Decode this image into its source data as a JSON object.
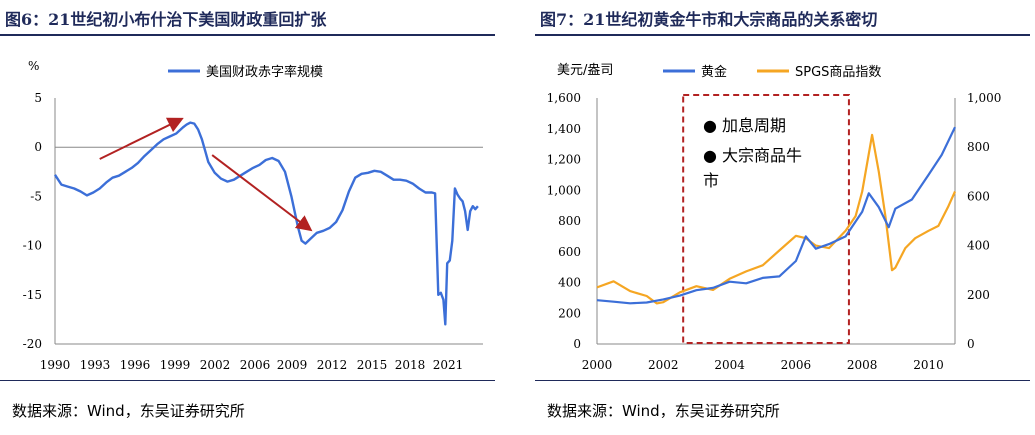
{
  "left": {
    "title": "图6：21世纪初小布什治下美国财政重回扩张",
    "source": "数据来源：Wind，东吴证券研究所"
  },
  "right": {
    "title": "图7：21世纪初黄金牛市和大宗商品的关系密切",
    "source": "数据来源：Wind，东吴证券研究所"
  },
  "colors": {
    "blue": "#3c6fd8",
    "orange": "#f5a623",
    "red": "#b22222",
    "navy": "#1f2a5a"
  },
  "chart_data": [
    {
      "type": "line",
      "title": "图6：21世纪初小布什治下美国财政重回扩张",
      "ylabel": "%",
      "xlabel": "",
      "ylim": [
        -20,
        5
      ],
      "xlim": [
        1990,
        2023.5
      ],
      "yticks": [
        5,
        0,
        -5,
        -10,
        -15,
        -20
      ],
      "yticklabels": [
        "5",
        "0",
        "-5",
        "-10",
        "-15",
        "-20"
      ],
      "xticklabels": [
        "1990",
        "1993",
        "1996",
        "1999",
        "2002",
        "2006",
        "2009",
        "2012",
        "2015",
        "2018",
        "2021"
      ],
      "series": [
        {
          "name": "美国财政赤字率规模",
          "color": "#3c6fd8",
          "x": [
            1990.0,
            1990.5,
            1991.0,
            1991.5,
            1992.0,
            1992.5,
            1993.0,
            1993.5,
            1994.0,
            1994.5,
            1995.0,
            1995.5,
            1996.0,
            1996.5,
            1997.0,
            1997.5,
            1998.0,
            1998.5,
            1999.0,
            1999.5,
            2000.0,
            2000.3,
            2000.6,
            2000.9,
            2001.2,
            2001.5,
            2001.8,
            2002.0,
            2002.5,
            2003.0,
            2003.5,
            2004.0,
            2004.5,
            2005.0,
            2005.5,
            2006.0,
            2006.5,
            2007.0,
            2007.5,
            2008.0,
            2008.5,
            2009.0,
            2009.3,
            2009.6,
            2010.0,
            2010.5,
            2011.0,
            2011.5,
            2012.0,
            2012.5,
            2013.0,
            2013.5,
            2014.0,
            2014.5,
            2015.0,
            2015.5,
            2016.0,
            2016.5,
            2017.0,
            2017.5,
            2018.0,
            2018.5,
            2019.0,
            2019.5,
            2019.75,
            2020.0,
            2020.2,
            2020.4,
            2020.55,
            2020.7,
            2020.9,
            2021.1,
            2021.3,
            2021.5,
            2021.7,
            2021.9,
            2022.1,
            2022.3,
            2022.5,
            2022.7,
            2022.9,
            2023.1
          ],
          "y": [
            -2.8,
            -3.8,
            -4.0,
            -4.2,
            -4.5,
            -4.9,
            -4.6,
            -4.2,
            -3.6,
            -3.1,
            -2.9,
            -2.5,
            -2.1,
            -1.6,
            -0.9,
            -0.3,
            0.3,
            0.8,
            1.1,
            1.4,
            2.0,
            2.3,
            2.5,
            2.4,
            1.8,
            0.8,
            -0.6,
            -1.5,
            -2.6,
            -3.2,
            -3.5,
            -3.3,
            -2.9,
            -2.5,
            -2.1,
            -1.8,
            -1.3,
            -1.1,
            -1.4,
            -2.5,
            -5.0,
            -8.0,
            -9.5,
            -9.8,
            -9.3,
            -8.7,
            -8.5,
            -8.2,
            -7.6,
            -6.4,
            -4.5,
            -3.1,
            -2.7,
            -2.6,
            -2.4,
            -2.5,
            -2.9,
            -3.3,
            -3.3,
            -3.4,
            -3.7,
            -4.2,
            -4.6,
            -4.6,
            -4.7,
            -15.0,
            -14.8,
            -15.5,
            -18.0,
            -11.8,
            -11.5,
            -9.5,
            -4.2,
            -4.8,
            -5.2,
            -5.5,
            -6.5,
            -8.4,
            -6.5,
            -6.0,
            -6.3,
            -6.0
          ]
        }
      ],
      "annotations": [
        {
          "type": "arrow",
          "from": [
            1993.5,
            -1.2
          ],
          "to": [
            1999.8,
            2.8
          ],
          "color": "#b22222"
        },
        {
          "type": "arrow",
          "from": [
            2002.3,
            -0.8
          ],
          "to": [
            2009.9,
            -8.3
          ],
          "color": "#b22222"
        }
      ]
    },
    {
      "type": "line",
      "title": "图7：21世纪初黄金牛市和大宗商品的关系密切",
      "ylabel": "美元/盎司",
      "xlabel": "",
      "xlim": [
        2000,
        2010.8
      ],
      "ylim_left": [
        0,
        1600
      ],
      "ylim_right": [
        0,
        1000
      ],
      "yticks_left": [
        0,
        200,
        400,
        600,
        800,
        1000,
        1200,
        1400,
        1600
      ],
      "yticklabels_left": [
        "0",
        "200",
        "400",
        "600",
        "800",
        "1,000",
        "1,200",
        "1,400",
        "1,600"
      ],
      "yticks_right": [
        0,
        200,
        400,
        600,
        800,
        1000
      ],
      "yticklabels_right": [
        "0",
        "200",
        "400",
        "600",
        "800",
        "1,000"
      ],
      "xticklabels": [
        "2000",
        "2002",
        "2004",
        "2006",
        "2008",
        "2010"
      ],
      "series": [
        {
          "name": "黄金",
          "axis": "left",
          "color": "#3c6fd8",
          "x": [
            2000.0,
            2000.5,
            2001.0,
            2001.5,
            2002.0,
            2002.5,
            2003.0,
            2003.5,
            2004.0,
            2004.5,
            2005.0,
            2005.5,
            2006.0,
            2006.3,
            2006.6,
            2007.0,
            2007.5,
            2008.0,
            2008.2,
            2008.5,
            2008.8,
            2009.0,
            2009.5,
            2010.0,
            2010.4,
            2010.8
          ],
          "y": [
            285,
            275,
            265,
            270,
            290,
            315,
            350,
            365,
            405,
            395,
            430,
            440,
            540,
            700,
            620,
            650,
            700,
            860,
            980,
            890,
            760,
            880,
            940,
            1100,
            1230,
            1410
          ]
        },
        {
          "name": "SPGS商品指数",
          "axis": "right",
          "color": "#f5a623",
          "x": [
            2000.0,
            2000.5,
            2001.0,
            2001.5,
            2001.8,
            2002.0,
            2002.5,
            2003.0,
            2003.5,
            2004.0,
            2004.5,
            2005.0,
            2005.5,
            2006.0,
            2006.3,
            2006.6,
            2007.0,
            2007.5,
            2007.8,
            2008.0,
            2008.3,
            2008.5,
            2008.7,
            2008.9,
            2009.0,
            2009.3,
            2009.6,
            2010.0,
            2010.3,
            2010.6,
            2010.8
          ],
          "y": [
            230,
            255,
            215,
            195,
            165,
            170,
            210,
            235,
            220,
            265,
            295,
            320,
            380,
            440,
            430,
            400,
            390,
            460,
            520,
            620,
            850,
            700,
            520,
            300,
            310,
            390,
            430,
            460,
            480,
            560,
            620
          ]
        }
      ],
      "annotations": [
        {
          "type": "dashed-box",
          "x0": 2002.6,
          "x1": 2007.6,
          "color": "#b22222"
        },
        {
          "type": "text",
          "lines": [
            "加息周期",
            "大宗商品牛市"
          ]
        }
      ],
      "annotation_labels": {
        "line1": "● 加息周期",
        "line2a": "● 大宗商品牛",
        "line2b": "市"
      }
    }
  ]
}
